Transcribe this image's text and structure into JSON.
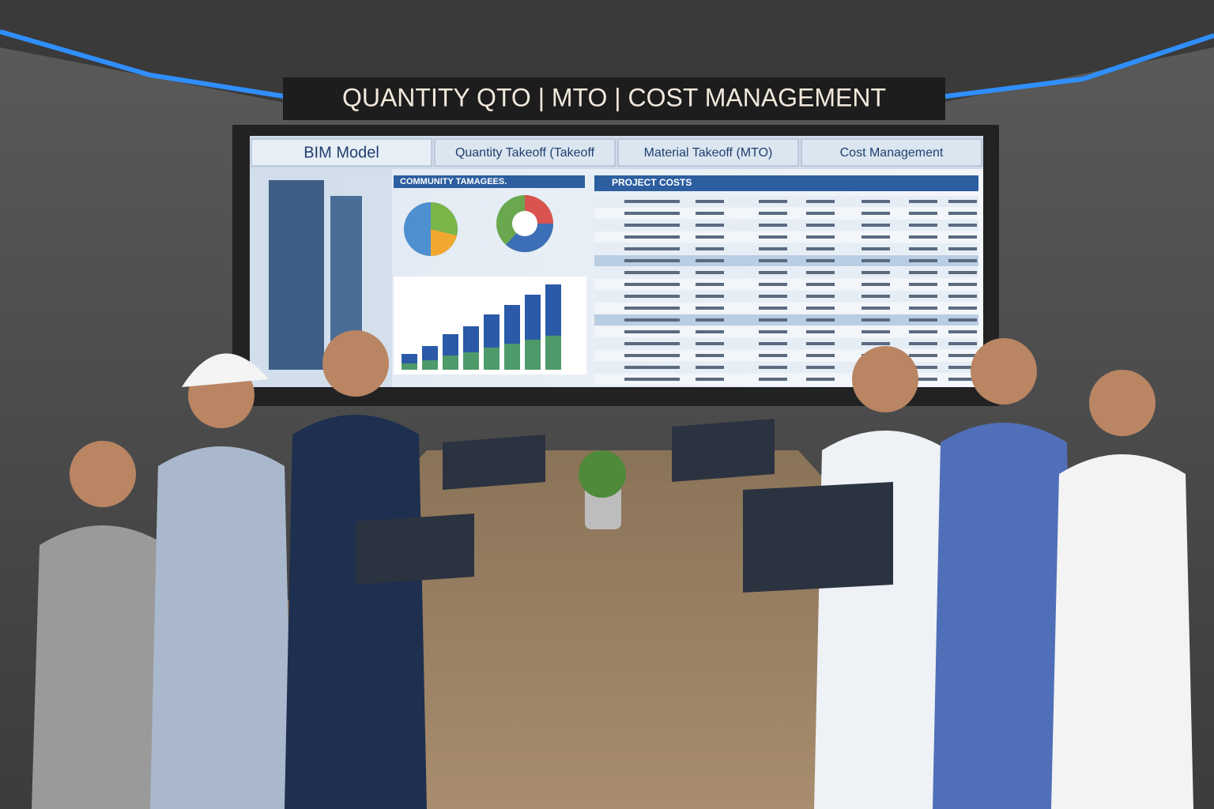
{
  "sign": {
    "title": "QUANTITY QTO | MTO | COST MANAGEMENT"
  },
  "screen": {
    "tabs": [
      "BIM Model",
      "Quantity Takeoff (Takeoff",
      "Material Takeoff (MTO)",
      "Cost Management"
    ],
    "quantity_heading": "COMMUNITY TAMAGEES.",
    "project_costs": "PROJECT COSTS"
  }
}
